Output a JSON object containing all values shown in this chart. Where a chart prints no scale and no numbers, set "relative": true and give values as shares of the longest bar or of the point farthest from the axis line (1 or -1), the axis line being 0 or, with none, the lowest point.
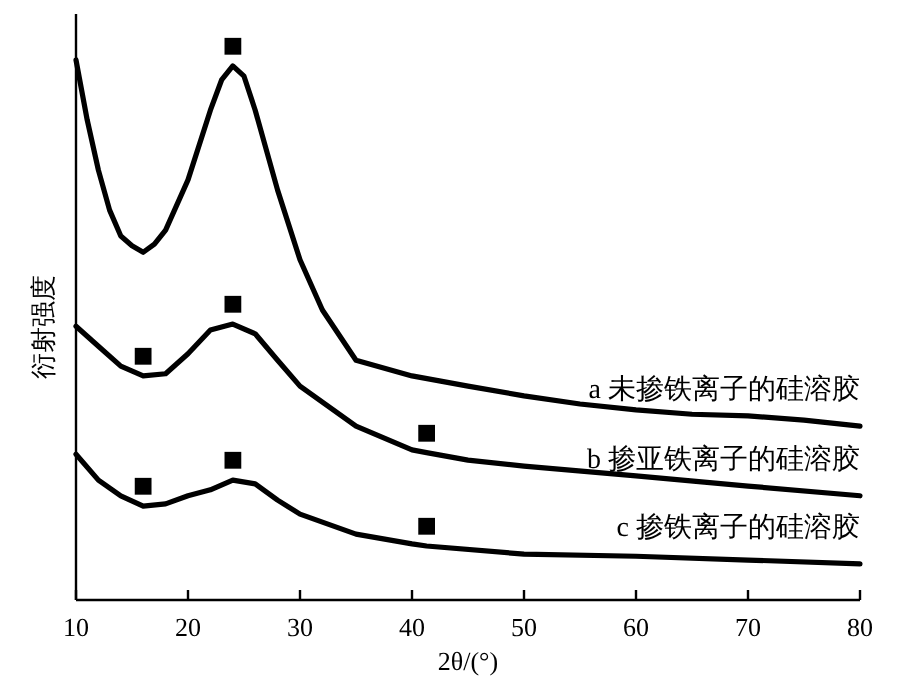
{
  "chart_data": {
    "type": "line",
    "relative": true,
    "xlabel": "2θ/(°)",
    "ylabel": "衍射强度",
    "xlim": [
      10,
      80
    ],
    "xticks": [
      10,
      20,
      30,
      40,
      50,
      60,
      70,
      80
    ],
    "tick_labels": "x",
    "series": [
      {
        "name": "a 未掺铁离子的硅溶胶",
        "color": "#000000",
        "x": [
          10,
          11,
          12,
          13,
          14,
          15,
          16,
          17,
          18,
          20,
          22,
          23,
          24,
          25,
          26,
          28,
          30,
          32,
          35,
          40,
          45,
          50,
          55,
          60,
          65,
          70,
          75,
          80
        ],
        "values": [
          1.0,
          0.889,
          0.796,
          0.722,
          0.674,
          0.656,
          0.644,
          0.659,
          0.685,
          0.778,
          0.907,
          0.963,
          0.989,
          0.97,
          0.907,
          0.759,
          0.63,
          0.537,
          0.444,
          0.415,
          0.396,
          0.378,
          0.363,
          0.352,
          0.344,
          0.341,
          0.333,
          0.322
        ]
      },
      {
        "name": "b 掺亚铁离子的硅溶胶",
        "color": "#000000",
        "x": [
          10,
          12,
          14,
          16,
          18,
          20,
          22,
          24,
          26,
          28,
          30,
          35,
          40,
          41.3,
          45,
          50,
          60,
          70,
          80
        ],
        "values": [
          0.507,
          0.47,
          0.433,
          0.415,
          0.419,
          0.456,
          0.5,
          0.511,
          0.493,
          0.444,
          0.396,
          0.322,
          0.278,
          0.273,
          0.259,
          0.248,
          0.23,
          0.211,
          0.193
        ]
      },
      {
        "name": "c 掺铁离子的硅溶胶",
        "color": "#000000",
        "x": [
          10,
          12,
          14,
          16,
          18,
          20,
          22,
          24,
          26,
          28,
          30,
          35,
          40,
          41.3,
          50,
          60,
          70,
          80
        ],
        "values": [
          0.27,
          0.222,
          0.193,
          0.174,
          0.178,
          0.193,
          0.204,
          0.222,
          0.215,
          0.185,
          0.159,
          0.122,
          0.104,
          0.1,
          0.085,
          0.081,
          0.074,
          0.067
        ]
      }
    ],
    "annotations": [
      {
        "text": "■",
        "x": 24,
        "y": 0.989
      },
      {
        "text": "■",
        "x": 16,
        "y": 0.415
      },
      {
        "text": "■",
        "x": 24,
        "y": 0.511
      },
      {
        "text": "■",
        "x": 41.3,
        "y": 0.273
      },
      {
        "text": "■",
        "x": 16,
        "y": 0.174
      },
      {
        "text": "■",
        "x": 24,
        "y": 0.222
      },
      {
        "text": "■",
        "x": 41.3,
        "y": 0.1
      }
    ]
  }
}
